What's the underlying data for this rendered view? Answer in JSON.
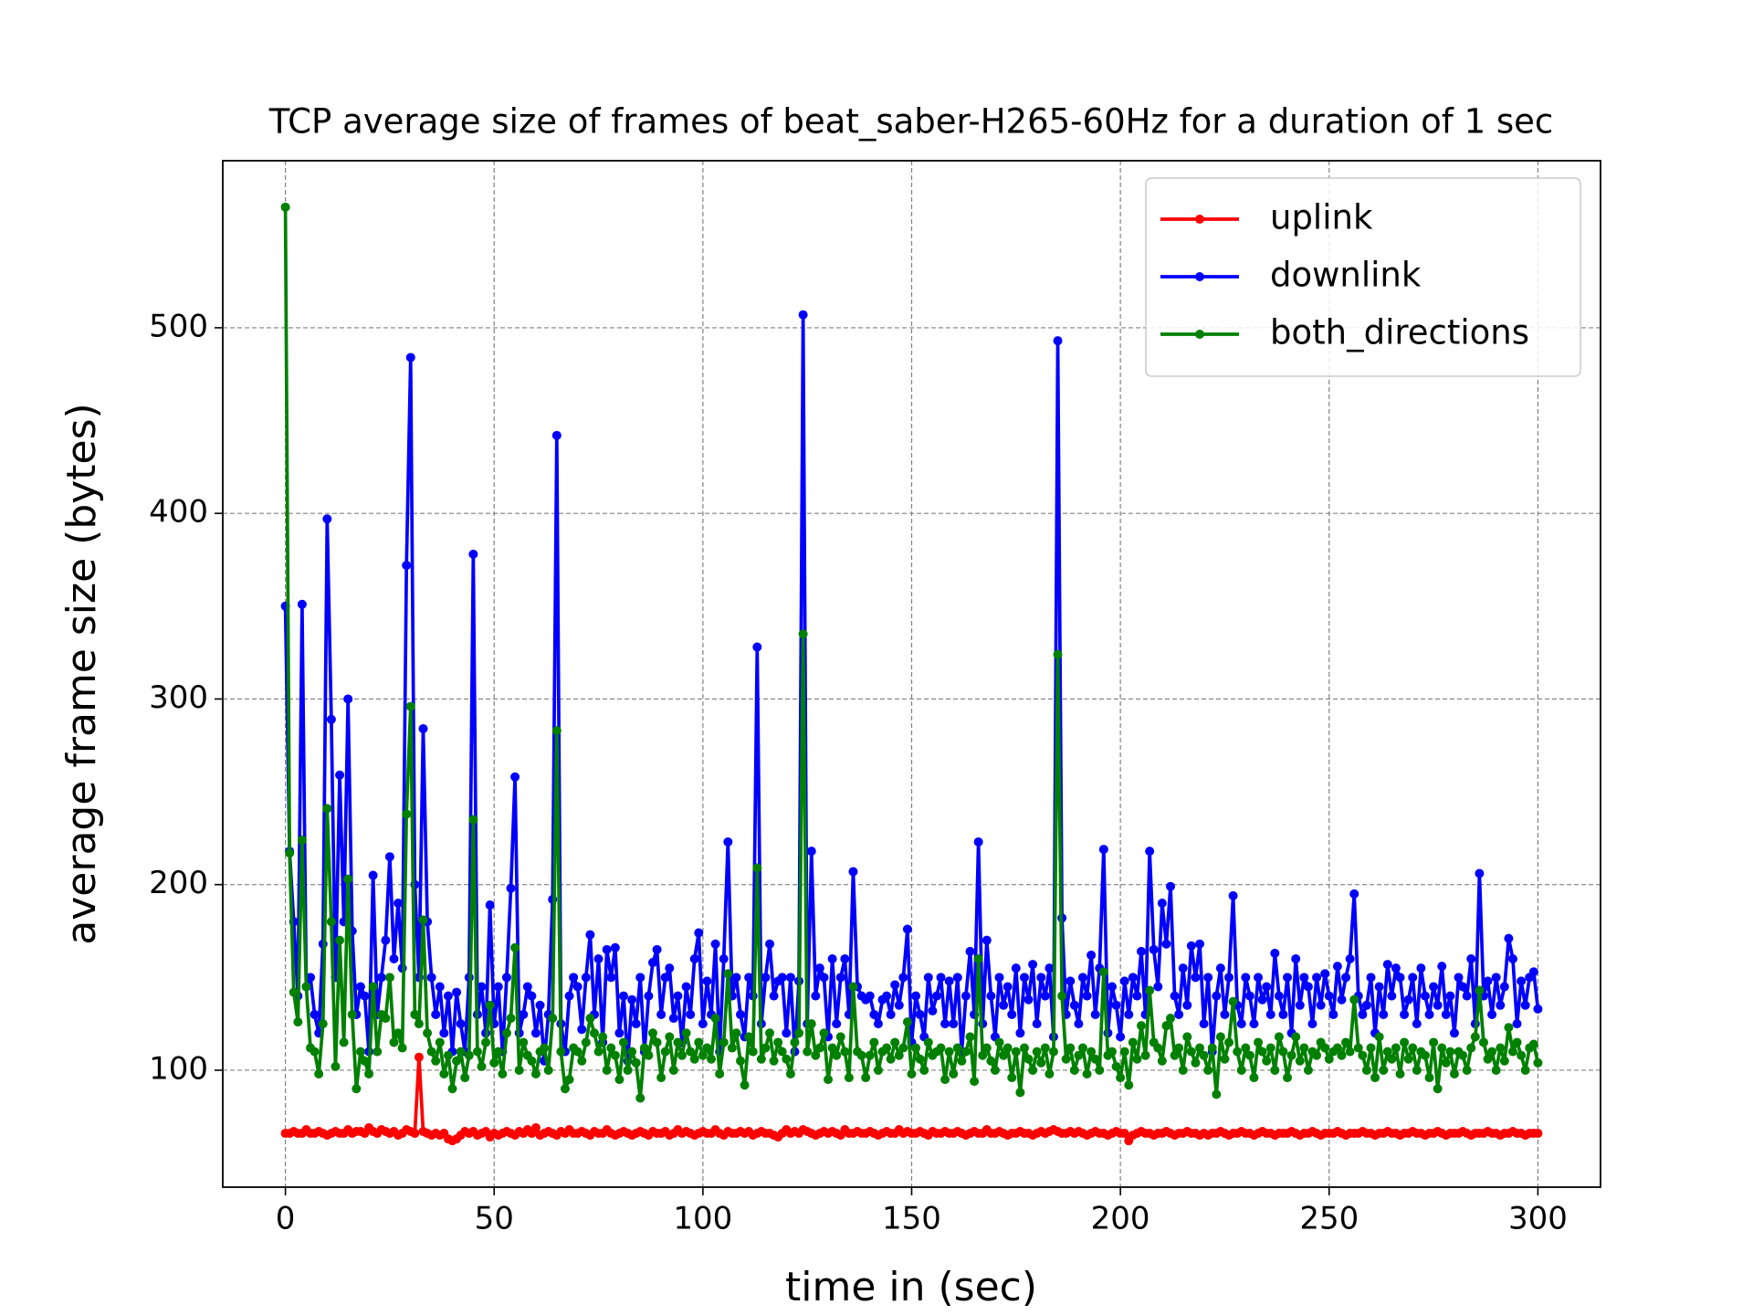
{
  "chart_data": {
    "type": "line",
    "title": "TCP average size of frames of beat_saber-H265-60Hz for a duration of 1 sec",
    "xlabel": "time in (sec)",
    "ylabel": "average frame size (bytes)",
    "xlim": [
      -15,
      315
    ],
    "ylim": [
      37,
      590
    ],
    "xticks": [
      0,
      50,
      100,
      150,
      200,
      250,
      300
    ],
    "yticks": [
      100,
      200,
      300,
      400,
      500
    ],
    "grid": true,
    "legend": "upper right",
    "x": [
      0,
      1,
      2,
      3,
      4,
      5,
      6,
      7,
      8,
      9,
      10,
      11,
      12,
      13,
      14,
      15,
      16,
      17,
      18,
      19,
      20,
      21,
      22,
      23,
      24,
      25,
      26,
      27,
      28,
      29,
      30,
      31,
      32,
      33,
      34,
      35,
      36,
      37,
      38,
      39,
      40,
      41,
      42,
      43,
      44,
      45,
      46,
      47,
      48,
      49,
      50,
      51,
      52,
      53,
      54,
      55,
      56,
      57,
      58,
      59,
      60,
      61,
      62,
      63,
      64,
      65,
      66,
      67,
      68,
      69,
      70,
      71,
      72,
      73,
      74,
      75,
      76,
      77,
      78,
      79,
      80,
      81,
      82,
      83,
      84,
      85,
      86,
      87,
      88,
      89,
      90,
      91,
      92,
      93,
      94,
      95,
      96,
      97,
      98,
      99,
      100,
      101,
      102,
      103,
      104,
      105,
      106,
      107,
      108,
      109,
      110,
      111,
      112,
      113,
      114,
      115,
      116,
      117,
      118,
      119,
      120,
      121,
      122,
      123,
      124,
      125,
      126,
      127,
      128,
      129,
      130,
      131,
      132,
      133,
      134,
      135,
      136,
      137,
      138,
      139,
      140,
      141,
      142,
      143,
      144,
      145,
      146,
      147,
      148,
      149,
      150,
      151,
      152,
      153,
      154,
      155,
      156,
      157,
      158,
      159,
      160,
      161,
      162,
      163,
      164,
      165,
      166,
      167,
      168,
      169,
      170,
      171,
      172,
      173,
      174,
      175,
      176,
      177,
      178,
      179,
      180,
      181,
      182,
      183,
      184,
      185,
      186,
      187,
      188,
      189,
      190,
      191,
      192,
      193,
      194,
      195,
      196,
      197,
      198,
      199,
      200,
      201,
      202,
      203,
      204,
      205,
      206,
      207,
      208,
      209,
      210,
      211,
      212,
      213,
      214,
      215,
      216,
      217,
      218,
      219,
      220,
      221,
      222,
      223,
      224,
      225,
      226,
      227,
      228,
      229,
      230,
      231,
      232,
      233,
      234,
      235,
      236,
      237,
      238,
      239,
      240,
      241,
      242,
      243,
      244,
      245,
      246,
      247,
      248,
      249,
      250,
      251,
      252,
      253,
      254,
      255,
      256,
      257,
      258,
      259,
      260,
      261,
      262,
      263,
      264,
      265,
      266,
      267,
      268,
      269,
      270,
      271,
      272,
      273,
      274,
      275,
      276,
      277,
      278,
      279,
      280,
      281,
      282,
      283,
      284,
      285,
      286,
      287,
      288,
      289,
      290,
      291,
      292,
      293,
      294,
      295,
      296,
      297,
      298,
      299,
      300
    ],
    "series": [
      {
        "name": "uplink",
        "color": "#ff0000",
        "values": [
          66,
          66,
          67,
          66,
          66,
          68,
          66,
          66,
          67,
          66,
          65,
          66,
          67,
          66,
          66,
          68,
          66,
          67,
          67,
          66,
          69,
          67,
          66,
          68,
          67,
          66,
          67,
          65,
          66,
          68,
          67,
          66,
          107,
          67,
          66,
          65,
          66,
          65,
          66,
          63,
          62,
          63,
          65,
          67,
          66,
          67,
          65,
          66,
          67,
          64,
          66,
          65,
          66,
          67,
          66,
          65,
          67,
          66,
          68,
          66,
          69,
          65,
          66,
          67,
          66,
          65,
          67,
          66,
          68,
          66,
          66,
          67,
          66,
          65,
          67,
          66,
          66,
          68,
          66,
          65,
          66,
          67,
          66,
          65,
          66,
          67,
          66,
          65,
          67,
          66,
          66,
          67,
          65,
          66,
          68,
          66,
          67,
          66,
          65,
          66,
          67,
          66,
          66,
          68,
          66,
          65,
          67,
          66,
          66,
          67,
          66,
          67,
          65,
          66,
          67,
          66,
          66,
          65,
          64,
          66,
          68,
          66,
          67,
          66,
          68,
          67,
          66,
          65,
          66,
          67,
          66,
          67,
          66,
          65,
          68,
          66,
          66,
          67,
          66,
          66,
          67,
          66,
          65,
          66,
          67,
          66,
          66,
          68,
          66,
          67,
          66,
          66,
          67,
          66,
          65,
          67,
          66,
          66,
          67,
          66,
          66,
          67,
          66,
          65,
          66,
          67,
          66,
          66,
          68,
          66,
          66,
          67,
          66,
          65,
          66,
          66,
          67,
          66,
          66,
          65,
          66,
          67,
          66,
          67,
          68,
          67,
          66,
          66,
          67,
          66,
          67,
          66,
          65,
          66,
          67,
          66,
          66,
          65,
          66,
          67,
          66,
          66,
          62,
          65,
          66,
          67,
          66,
          66,
          65,
          66,
          66,
          67,
          66,
          65,
          66,
          66,
          67,
          66,
          66,
          65,
          66,
          65,
          66,
          66,
          67,
          66,
          65,
          66,
          66,
          67,
          66,
          66,
          65,
          66,
          67,
          66,
          66,
          65,
          66,
          66,
          66,
          67,
          66,
          65,
          66,
          66,
          67,
          66,
          65,
          66,
          66,
          66,
          67,
          66,
          65,
          66,
          66,
          66,
          67,
          66,
          66,
          65,
          66,
          66,
          67,
          66,
          66,
          65,
          66,
          66,
          67,
          66,
          66,
          65,
          66,
          66,
          67,
          66,
          65,
          66,
          66,
          66,
          67,
          66,
          65,
          66,
          66,
          66,
          67,
          66,
          66,
          65,
          66,
          66,
          67,
          66,
          66,
          65,
          66,
          66,
          66
        ]
      },
      {
        "name": "downlink",
        "color": "#0000ff",
        "values": [
          350,
          218,
          180,
          140,
          351,
          145,
          150,
          130,
          120,
          168,
          397,
          289,
          150,
          259,
          180,
          300,
          175,
          130,
          145,
          140,
          110,
          205,
          130,
          150,
          170,
          215,
          160,
          190,
          155,
          372,
          484,
          200,
          150,
          284,
          180,
          150,
          130,
          145,
          120,
          140,
          110,
          142,
          125,
          110,
          150,
          378,
          130,
          145,
          120,
          189,
          125,
          145,
          110,
          150,
          198,
          258,
          120,
          130,
          145,
          140,
          120,
          135,
          105,
          130,
          192,
          442,
          125,
          110,
          140,
          150,
          145,
          122,
          150,
          173,
          130,
          160,
          115,
          165,
          150,
          166,
          120,
          140,
          105,
          138,
          125,
          150,
          110,
          140,
          158,
          165,
          130,
          150,
          155,
          128,
          140,
          115,
          145,
          130,
          160,
          174,
          125,
          148,
          130,
          168,
          110,
          160,
          223,
          140,
          150,
          130,
          118,
          150,
          140,
          328,
          125,
          150,
          168,
          140,
          148,
          150,
          120,
          150,
          110,
          148,
          507,
          125,
          218,
          140,
          155,
          150,
          118,
          160,
          125,
          150,
          160,
          130,
          207,
          145,
          140,
          138,
          140,
          130,
          125,
          138,
          140,
          130,
          146,
          135,
          150,
          176,
          115,
          140,
          130,
          118,
          150,
          132,
          140,
          150,
          125,
          148,
          125,
          150,
          110,
          140,
          164,
          130,
          223,
          125,
          170,
          140,
          118,
          150,
          135,
          145,
          130,
          155,
          120,
          150,
          138,
          157,
          125,
          150,
          140,
          155,
          118,
          493,
          182,
          130,
          148,
          135,
          125,
          150,
          140,
          162,
          130,
          155,
          219,
          120,
          145,
          135,
          118,
          148,
          130,
          150,
          140,
          164,
          130,
          218,
          165,
          145,
          190,
          168,
          199,
          140,
          130,
          155,
          135,
          167,
          150,
          168,
          125,
          150,
          110,
          140,
          155,
          130,
          150,
          194,
          135,
          125,
          150,
          140,
          125,
          150,
          138,
          145,
          130,
          163,
          140,
          130,
          150,
          120,
          160,
          135,
          150,
          145,
          125,
          150,
          135,
          152,
          140,
          130,
          156,
          138,
          150,
          160,
          195,
          140,
          130,
          135,
          150,
          120,
          145,
          130,
          157,
          140,
          155,
          150,
          130,
          138,
          150,
          125,
          155,
          140,
          130,
          145,
          135,
          156,
          130,
          140,
          120,
          150,
          145,
          140,
          160,
          125,
          206,
          140,
          148,
          130,
          150,
          135,
          145,
          171,
          160,
          125,
          148,
          135,
          150,
          153,
          133
        ]
      },
      {
        "name": "both_directions",
        "color": "#008000",
        "values": [
          565,
          217,
          142,
          126,
          224,
          145,
          112,
          110,
          98,
          125,
          241,
          180,
          102,
          170,
          115,
          203,
          130,
          90,
          110,
          105,
          98,
          145,
          110,
          130,
          128,
          150,
          115,
          120,
          112,
          238,
          296,
          130,
          125,
          181,
          120,
          110,
          105,
          115,
          98,
          108,
          90,
          105,
          110,
          96,
          108,
          235,
          110,
          102,
          115,
          135,
          104,
          110,
          98,
          120,
          128,
          166,
          100,
          115,
          108,
          105,
          98,
          110,
          112,
          100,
          128,
          283,
          110,
          90,
          95,
          112,
          110,
          105,
          115,
          128,
          120,
          110,
          118,
          100,
          112,
          108,
          95,
          115,
          100,
          110,
          104,
          85,
          112,
          108,
          120,
          115,
          96,
          110,
          118,
          100,
          115,
          108,
          120,
          110,
          106,
          115,
          108,
          112,
          106,
          128,
          98,
          115,
          152,
          112,
          120,
          105,
          92,
          118,
          110,
          209,
          106,
          112,
          120,
          105,
          115,
          110,
          106,
          98,
          115,
          120,
          335,
          110,
          125,
          108,
          112,
          120,
          95,
          112,
          108,
          118,
          110,
          96,
          145,
          110,
          108,
          96,
          108,
          115,
          100,
          110,
          112,
          106,
          115,
          108,
          112,
          126,
          98,
          112,
          106,
          100,
          115,
          108,
          110,
          112,
          95,
          110,
          98,
          112,
          105,
          110,
          118,
          94,
          160,
          108,
          112,
          105,
          100,
          115,
          108,
          112,
          96,
          110,
          88,
          112,
          106,
          100,
          110,
          104,
          112,
          98,
          110,
          324,
          140,
          106,
          112,
          100,
          108,
          112,
          98,
          110,
          106,
          100,
          153,
          108,
          110,
          102,
          96,
          110,
          92,
          115,
          106,
          124,
          108,
          143,
          115,
          112,
          105,
          124,
          128,
          108,
          112,
          100,
          118,
          110,
          104,
          112,
          108,
          100,
          112,
          87,
          118,
          106,
          115,
          137,
          110,
          100,
          112,
          108,
          96,
          115,
          110,
          105,
          112,
          100,
          118,
          110,
          96,
          108,
          118,
          105,
          112,
          100,
          110,
          108,
          115,
          112,
          106,
          110,
          112,
          108,
          115,
          110,
          138,
          112,
          108,
          100,
          112,
          96,
          118,
          100,
          110,
          106,
          112,
          98,
          115,
          106,
          112,
          100,
          110,
          108,
          96,
          115,
          90,
          112,
          104,
          110,
          98,
          110,
          108,
          100,
          112,
          118,
          143,
          115,
          106,
          110,
          100,
          112,
          105,
          123,
          110,
          115,
          108,
          100,
          112,
          114,
          104
        ]
      }
    ]
  }
}
